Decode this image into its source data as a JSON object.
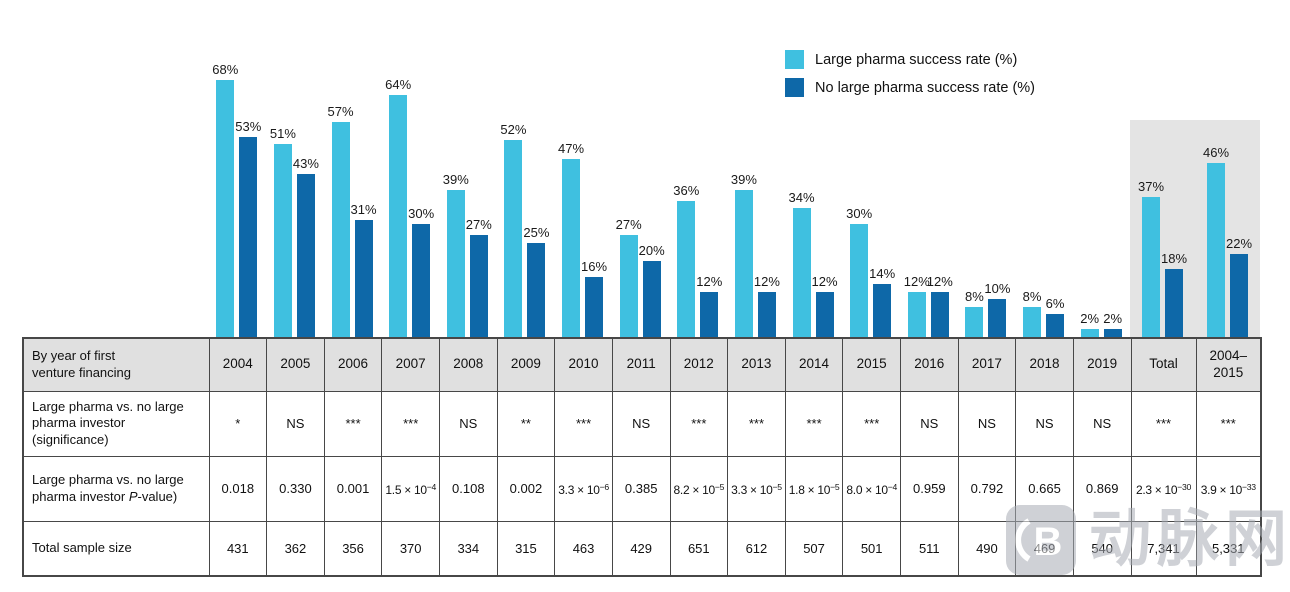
{
  "chart_data": {
    "type": "bar",
    "categories": [
      "2004",
      "2005",
      "2006",
      "2007",
      "2008",
      "2009",
      "2010",
      "2011",
      "2012",
      "2013",
      "2014",
      "2015",
      "2016",
      "2017",
      "2018",
      "2019",
      "Total",
      "2004–2015"
    ],
    "series": [
      {
        "name": "Large pharma success rate (%)",
        "color": "#3fc0e0",
        "values": [
          68,
          51,
          57,
          64,
          39,
          52,
          47,
          27,
          36,
          39,
          34,
          30,
          12,
          8,
          8,
          2,
          37,
          46
        ]
      },
      {
        "name": "No large pharma success rate (%)",
        "color": "#0e68a8",
        "values": [
          53,
          43,
          31,
          30,
          27,
          25,
          16,
          20,
          12,
          12,
          12,
          14,
          12,
          10,
          6,
          2,
          18,
          22
        ]
      }
    ],
    "value_suffix": "%",
    "ylim": [
      0,
      70
    ],
    "grid": false,
    "legend_position": "top-right",
    "highlighted_categories": [
      "Total",
      "2004–2015"
    ],
    "highlight_color": "#e4e4e4"
  },
  "table": {
    "header_label": "By year of first\nventure financing",
    "columns": [
      "2004",
      "2005",
      "2006",
      "2007",
      "2008",
      "2009",
      "2010",
      "2011",
      "2012",
      "2013",
      "2014",
      "2015",
      "2016",
      "2017",
      "2018",
      "2019",
      "Total",
      "2004–\n2015"
    ],
    "rows": [
      {
        "label": "Large pharma vs. no large pharma investor (significance)",
        "values": [
          "*",
          "NS",
          "***",
          "***",
          "NS",
          "**",
          "***",
          "NS",
          "***",
          "***",
          "***",
          "***",
          "NS",
          "NS",
          "NS",
          "NS",
          "***",
          "***"
        ]
      },
      {
        "label": "Large pharma vs. no large pharma investor (P-value)",
        "values": [
          "0.018",
          "0.330",
          "0.001",
          "1.5 × 10^−4",
          "0.108",
          "0.002",
          "3.3 × 10^−6",
          "0.385",
          "8.2 × 10^−5",
          "3.3 × 10^−5",
          "1.8 × 10^−5",
          "8.0 × 10^−4",
          "0.959",
          "0.792",
          "0.665",
          "0.869",
          "2.3 × 10^−30",
          "3.9 × 10^−33"
        ]
      },
      {
        "label": "Total sample size",
        "values": [
          "431",
          "362",
          "356",
          "370",
          "334",
          "315",
          "463",
          "429",
          "651",
          "612",
          "507",
          "501",
          "511",
          "490",
          "469",
          "540",
          "7,341",
          "5,331"
        ]
      }
    ]
  },
  "watermark": {
    "text": "动脉网"
  }
}
